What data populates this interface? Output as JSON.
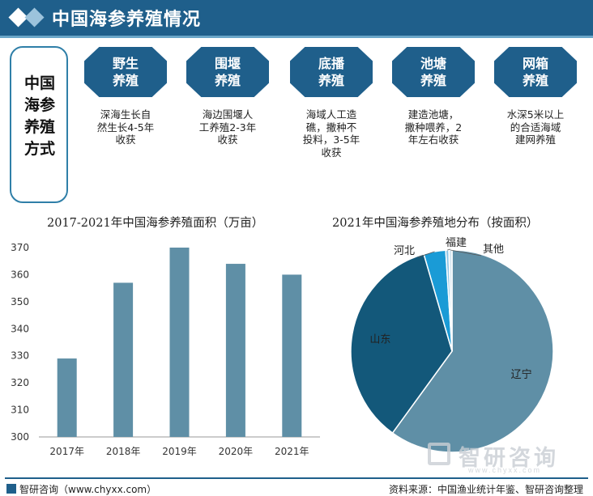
{
  "header": {
    "title": "中国海参养殖情况"
  },
  "methods": {
    "label": "中国海参养殖方式",
    "items": [
      {
        "name": "野生养殖",
        "desc": "深海生长自然生长4-5年收获"
      },
      {
        "name": "围堰养殖",
        "desc": "海边围堰人工养殖2-3年收获"
      },
      {
        "name": "底播养殖",
        "desc": "海域人工造礁，撒种不投料，3-5年收获"
      },
      {
        "name": "池塘养殖",
        "desc": "建造池塘，撒种喂养，2年左右收获"
      },
      {
        "name": "网箱养殖",
        "desc": "水深5米以上的合适海域建网养殖"
      }
    ]
  },
  "chart_data": [
    {
      "type": "bar",
      "title": "2017-2021年中国海参养殖面积（万亩）",
      "categories": [
        "2017年",
        "2018年",
        "2019年",
        "2020年",
        "2021年"
      ],
      "values": [
        329,
        357,
        370,
        364,
        360
      ],
      "ylim": [
        300,
        370
      ],
      "yticks": [
        300,
        310,
        320,
        330,
        340,
        350,
        360,
        370
      ],
      "grid": false,
      "color": "#5f8fa6"
    },
    {
      "type": "pie",
      "title": "2021年中国海参养殖地分布（按面积）",
      "labels": [
        "辽宁",
        "山东",
        "河北",
        "福建",
        "其他"
      ],
      "values": [
        60.0,
        35.5,
        3.5,
        0.5,
        0.5
      ],
      "colors": [
        "#5f8fa6",
        "#13587a",
        "#1a9bd6",
        "#8fc6e6",
        "#d6e6f0"
      ]
    }
  ],
  "footer": {
    "left": "智研咨询（www.chyxx.com）",
    "right": "资料来源：中国渔业统计年鉴、智研咨询整理"
  },
  "watermark": {
    "name": "智研咨询",
    "url": "www.chyxx.com"
  },
  "colors": {
    "primary": "#1f5f8b",
    "bar": "#5f8fa6"
  }
}
